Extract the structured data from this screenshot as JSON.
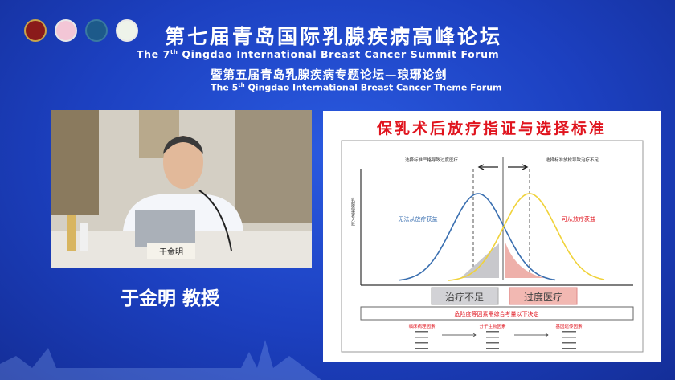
{
  "banner": {
    "title_cn": "第七届青岛国际乳腺疾病高峰论坛",
    "title_en_pre": "The 7",
    "title_en_sup": "th",
    "title_en_post": " Qingdao International Breast Cancer Summit Forum",
    "subtitle_cn": "暨第五届青岛乳腺疾病专题论坛—琅琊论剑",
    "subtitle_en_pre": "The 5",
    "subtitle_en_sup": "th",
    "subtitle_en_post": " Qingdao International Breast Cancer Theme Forum"
  },
  "video": {
    "nameplate": "于金明"
  },
  "speaker": {
    "name": "于金明  教授"
  },
  "slide": {
    "title": "保乳术后放疗指证与选择标准",
    "y_label": "乳腺癌患者人数",
    "left_note": "选择标准严格导致过度医疗",
    "right_note": "选择标准放松导致治疗不足",
    "blue_label": "无法从放疗获益",
    "red_label": "可从放疗获益",
    "box_under": "治疗不足",
    "box_over": "过度医疗",
    "decision": "危险度等因素需综合考量以下决定",
    "factors": [
      "临床病理因素",
      "分子生物因素",
      "基因遗传因素"
    ],
    "colors": {
      "blue_curve": "#3a6fb0",
      "yellow_curve": "#f0d23a",
      "title_red": "#e0141e"
    }
  }
}
